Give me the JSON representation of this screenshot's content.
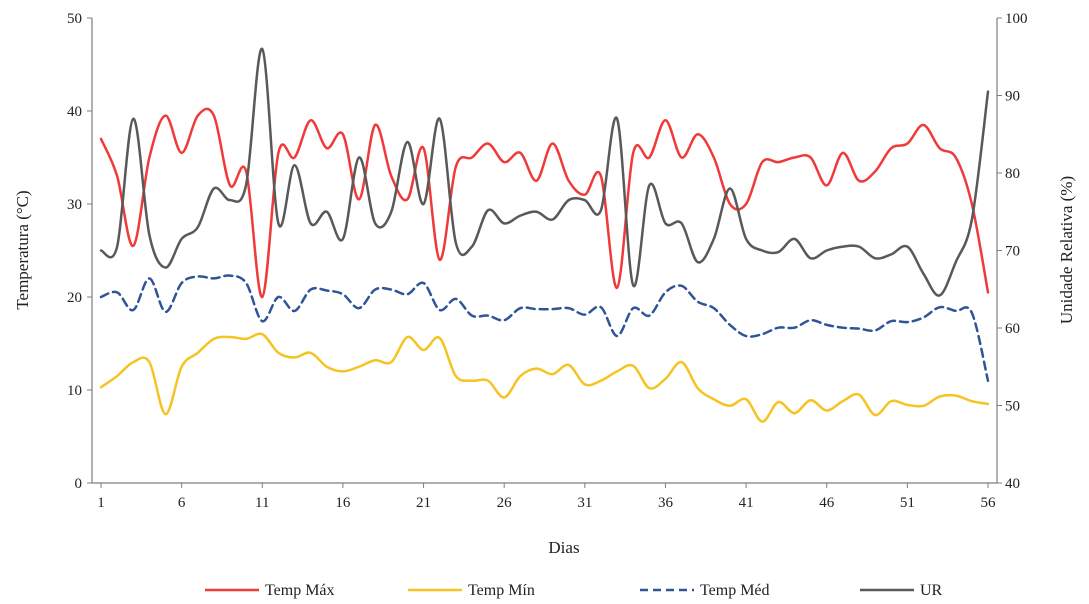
{
  "chart_data": {
    "type": "line",
    "xlabel": "Dias",
    "ylabel_left": "Temperatura (°C)",
    "ylabel_right": "Unidade Relativa (%)",
    "xlim": [
      1,
      56
    ],
    "ylim_left": [
      0,
      50
    ],
    "ylim_right": [
      40,
      100
    ],
    "x_ticks": [
      "1",
      "6",
      "11",
      "16",
      "21",
      "26",
      "31",
      "36",
      "41",
      "46",
      "51",
      "56"
    ],
    "y_ticks_left": [
      "0",
      "10",
      "20",
      "30",
      "40",
      "50"
    ],
    "y_ticks_right": [
      "40",
      "50",
      "60",
      "70",
      "80",
      "90",
      "100"
    ],
    "grid": false,
    "legend_position": "bottom",
    "x": [
      1,
      2,
      3,
      4,
      5,
      6,
      7,
      8,
      9,
      10,
      11,
      12,
      13,
      14,
      15,
      16,
      17,
      18,
      19,
      20,
      21,
      22,
      23,
      24,
      25,
      26,
      27,
      28,
      29,
      30,
      31,
      32,
      33,
      34,
      35,
      36,
      37,
      38,
      39,
      40,
      41,
      42,
      43,
      44,
      45,
      46,
      47,
      48,
      49,
      50,
      51,
      52,
      53,
      54,
      55,
      56
    ],
    "series": [
      {
        "name": "Temp Máx",
        "axis": "left",
        "color": "#f03a3a",
        "dash": "solid",
        "values": [
          37,
          33,
          25.5,
          35,
          39.5,
          35.5,
          39.5,
          39.5,
          32,
          33.5,
          20,
          35.5,
          35,
          39,
          36,
          37.5,
          30.5,
          38.5,
          33,
          30.5,
          36,
          24,
          34,
          35,
          36.5,
          34.5,
          35.5,
          32.5,
          36.5,
          32.5,
          31,
          33,
          21,
          35.5,
          35,
          39,
          35,
          37.5,
          35,
          30,
          30,
          34.5,
          34.5,
          35,
          35,
          32,
          35.5,
          32.5,
          33.5,
          36,
          36.5,
          38.5,
          36,
          35,
          30,
          20.5
        ]
      },
      {
        "name": "Temp Mín",
        "axis": "left",
        "color": "#f5c423",
        "dash": "solid",
        "values": [
          10.3,
          11.5,
          13,
          13,
          7.4,
          12.5,
          14,
          15.5,
          15.7,
          15.5,
          16,
          14,
          13.5,
          14,
          12.5,
          12,
          12.5,
          13.2,
          13,
          15.7,
          14.3,
          15.6,
          11.5,
          11,
          11,
          9.2,
          11.5,
          12.3,
          11.7,
          12.7,
          10.6,
          11,
          12,
          12.6,
          10.2,
          11.2,
          13,
          10.2,
          9,
          8.3,
          9,
          6.6,
          8.7,
          7.5,
          8.9,
          7.8,
          8.8,
          9.5,
          7.3,
          8.8,
          8.4,
          8.3,
          9.3,
          9.4,
          8.8,
          8.5
        ]
      },
      {
        "name": "Temp Méd",
        "axis": "left",
        "color": "#2f5597",
        "dash": "dashed",
        "values": [
          20,
          20.5,
          18.6,
          22,
          18.4,
          21.5,
          22.2,
          22,
          22.3,
          21.5,
          17.4,
          20,
          18.5,
          20.8,
          20.7,
          20.3,
          18.8,
          20.8,
          20.8,
          20.3,
          21.5,
          18.6,
          19.8,
          18,
          18,
          17.5,
          18.8,
          18.7,
          18.7,
          18.8,
          18.1,
          18.9,
          15.8,
          18.8,
          18,
          20.5,
          21.2,
          19.5,
          18.8,
          17,
          15.8,
          16,
          16.7,
          16.7,
          17.5,
          17,
          16.7,
          16.6,
          16.4,
          17.4,
          17.3,
          17.8,
          18.9,
          18.5,
          18.3,
          11
        ]
      },
      {
        "name": "UR",
        "axis": "right",
        "color": "#595959",
        "dash": "solid",
        "values": [
          70,
          70.5,
          87,
          72,
          67.8,
          71.5,
          73,
          78,
          76.5,
          78.5,
          96,
          73.5,
          81,
          73.5,
          75,
          71.5,
          82,
          73.5,
          75,
          84,
          76,
          87,
          71,
          70.5,
          75.2,
          73.5,
          74.5,
          75,
          74,
          76.5,
          76.5,
          75.2,
          87,
          65.5,
          78.4,
          73.5,
          73.5,
          68.5,
          71.5,
          78,
          71.5,
          70,
          69.8,
          71.5,
          69,
          70,
          70.5,
          70.5,
          69,
          69.5,
          70.5,
          67,
          64.2,
          68.5,
          74,
          90.5
        ]
      }
    ]
  }
}
